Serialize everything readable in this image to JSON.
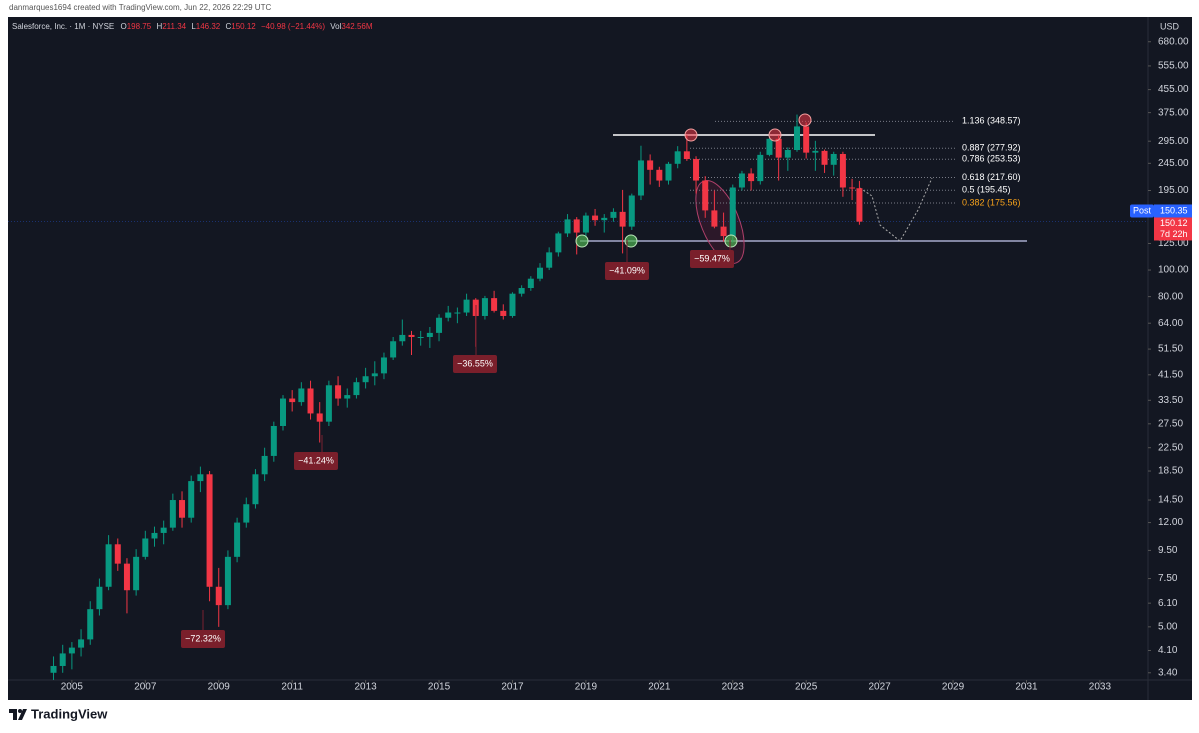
{
  "header": "danmarques1694 created with TradingView.com, Jun 22, 2026 22:29 UTC",
  "brand": "TradingView",
  "chart_data": {
    "type": "candlestick",
    "legend": {
      "symbol": "Salesforce, Inc. · 1M · NYSE",
      "o": "O",
      "h": "H",
      "l": "L",
      "c": "C",
      "change": "−40.98 (−21.44%)",
      "vol_label": "Vol",
      "vol": "342.56M"
    },
    "currency": "USD",
    "post_label": "Post",
    "post_price": {
      "value": 150.35,
      "label": "150.35"
    },
    "countdown": "7d 22h",
    "up_color": "#089981",
    "down_color": "#f23645",
    "log_scale": true,
    "grid": false,
    "x": [
      2004.5,
      2004.75,
      2005,
      2005.25,
      2005.5,
      2005.75,
      2006,
      2006.25,
      2006.5,
      2006.75,
      2007,
      2007.25,
      2007.5,
      2007.75,
      2008,
      2008.25,
      2008.5,
      2008.75,
      2009,
      2009.25,
      2009.5,
      2009.75,
      2010,
      2010.25,
      2010.5,
      2010.75,
      2011,
      2011.25,
      2011.5,
      2011.75,
      2012,
      2012.25,
      2012.5,
      2012.75,
      2013,
      2013.25,
      2013.5,
      2013.75,
      2014,
      2014.25,
      2014.5,
      2014.75,
      2015,
      2015.25,
      2015.5,
      2015.75,
      2016,
      2016.25,
      2016.5,
      2016.75,
      2017,
      2017.25,
      2017.5,
      2017.75,
      2018,
      2018.25,
      2018.5,
      2018.75,
      2019,
      2019.25,
      2019.5,
      2019.75,
      2020,
      2020.25,
      2020.5,
      2020.75,
      2021,
      2021.25,
      2021.5,
      2021.75,
      2022,
      2022.25,
      2022.5,
      2022.75,
      2023,
      2023.25,
      2023.5,
      2023.75,
      2024,
      2024.25,
      2024.5,
      2024.75,
      2025,
      2025.25,
      2025.5,
      2025.75,
      2026,
      2026.25,
      2026.45
    ],
    "values": [
      [
        3.4,
        3.9,
        3.2,
        3.6
      ],
      [
        3.6,
        4.3,
        3.4,
        4.0
      ],
      [
        4.0,
        4.4,
        3.5,
        4.2
      ],
      [
        4.2,
        4.9,
        3.9,
        4.5
      ],
      [
        4.5,
        6.2,
        4.3,
        5.8
      ],
      [
        5.8,
        7.5,
        5.5,
        7.0
      ],
      [
        7.0,
        10.8,
        6.8,
        10.0
      ],
      [
        10.0,
        10.5,
        8.0,
        8.5
      ],
      [
        8.5,
        8.9,
        5.6,
        6.8
      ],
      [
        6.8,
        9.6,
        6.5,
        9.0
      ],
      [
        9.0,
        11.2,
        8.8,
        10.5
      ],
      [
        10.5,
        11.6,
        9.8,
        11.0
      ],
      [
        11.0,
        12.2,
        10.0,
        11.5
      ],
      [
        11.5,
        15.3,
        11.2,
        14.5
      ],
      [
        14.5,
        15.6,
        11.5,
        12.5
      ],
      [
        12.5,
        17.8,
        12.0,
        17.0
      ],
      [
        17.0,
        19.2,
        15.5,
        18.0
      ],
      [
        18.0,
        18.5,
        6.2,
        7.0
      ],
      [
        7.0,
        8.2,
        5.0,
        6.0
      ],
      [
        6.0,
        9.5,
        5.8,
        9.0
      ],
      [
        9.0,
        12.5,
        8.6,
        12.0
      ],
      [
        12.0,
        14.8,
        11.5,
        14.0
      ],
      [
        14.0,
        18.8,
        13.5,
        18.0
      ],
      [
        18.0,
        22.5,
        17.0,
        21.0
      ],
      [
        21.0,
        28.0,
        20.0,
        27.0
      ],
      [
        27.0,
        35.0,
        26.0,
        34.0
      ],
      [
        34.0,
        36.5,
        30.5,
        33.0
      ],
      [
        33.0,
        39.0,
        32.0,
        37.0
      ],
      [
        37.0,
        39.5,
        28.5,
        30.0
      ],
      [
        30.0,
        33.0,
        23.5,
        28.0
      ],
      [
        28.0,
        39.5,
        27.0,
        38.0
      ],
      [
        38.0,
        41.0,
        32.0,
        34.0
      ],
      [
        34.0,
        37.0,
        31.5,
        35.0
      ],
      [
        35.0,
        40.5,
        34.0,
        39.0
      ],
      [
        39.0,
        44.0,
        37.0,
        41.0
      ],
      [
        41.0,
        46.5,
        38.0,
        42.0
      ],
      [
        42.0,
        50.0,
        40.0,
        48.0
      ],
      [
        48.0,
        57.0,
        47.0,
        55.0
      ],
      [
        55.0,
        66.0,
        53.0,
        58.0
      ],
      [
        58.0,
        60.0,
        49.0,
        57.0
      ],
      [
        57.0,
        60.0,
        53.0,
        57.0
      ],
      [
        57.0,
        62.0,
        52.0,
        59.0
      ],
      [
        59.0,
        69.0,
        55.0,
        67.0
      ],
      [
        67.0,
        74.0,
        65.0,
        70.0
      ],
      [
        70.0,
        73.0,
        64.0,
        70.0
      ],
      [
        70.0,
        82.0,
        68.0,
        78.0
      ],
      [
        78.0,
        79.0,
        52.5,
        68.0
      ],
      [
        68.0,
        80.5,
        66.0,
        79.0
      ],
      [
        79.0,
        84.0,
        70.0,
        71.0
      ],
      [
        71.0,
        75.0,
        66.0,
        68.0
      ],
      [
        68.0,
        83.0,
        67.0,
        82.0
      ],
      [
        82.0,
        88.0,
        80.0,
        86.0
      ],
      [
        86.0,
        95.0,
        84.0,
        93.0
      ],
      [
        93.0,
        106.0,
        91.0,
        102.0
      ],
      [
        102.0,
        121.0,
        100.0,
        116.0
      ],
      [
        116.0,
        138.0,
        112.0,
        136.0
      ],
      [
        136.0,
        160.0,
        132.0,
        153.0
      ],
      [
        153.0,
        156.0,
        114.0,
        137.0
      ],
      [
        137.0,
        162.0,
        132.0,
        158.0
      ],
      [
        158.0,
        167.0,
        145.0,
        152.0
      ],
      [
        152.0,
        160.0,
        137.0,
        155.0
      ],
      [
        155.0,
        168.0,
        150.0,
        163.0
      ],
      [
        163.0,
        196.0,
        115.0,
        144.0
      ],
      [
        144.0,
        190.0,
        140.0,
        187.0
      ],
      [
        187.0,
        284.0,
        180.0,
        251.0
      ],
      [
        251.0,
        264.0,
        205.0,
        232.0
      ],
      [
        232.0,
        238.0,
        201.0,
        212.0
      ],
      [
        212.0,
        248.0,
        205.0,
        244.0
      ],
      [
        244.0,
        283.0,
        235.0,
        271.0
      ],
      [
        271.0,
        311.0,
        250.0,
        254.0
      ],
      [
        254.0,
        260.0,
        190.0,
        212.0
      ],
      [
        212.0,
        220.0,
        155.0,
        165.0
      ],
      [
        165.0,
        195.0,
        142.0,
        144.0
      ],
      [
        144.0,
        162.0,
        127.0,
        133.0
      ],
      [
        133.0,
        205.0,
        126.0,
        200.0
      ],
      [
        200.0,
        230.0,
        195.0,
        225.0
      ],
      [
        225.0,
        235.0,
        195.0,
        211.0
      ],
      [
        211.0,
        270.0,
        205.0,
        263.0
      ],
      [
        263.0,
        318.0,
        260.0,
        301.0
      ],
      [
        301.0,
        310.0,
        212.0,
        257.0
      ],
      [
        257.0,
        280.0,
        230.0,
        274.0
      ],
      [
        274.0,
        369.0,
        270.0,
        334.0
      ],
      [
        334.0,
        345.0,
        255.0,
        268.0
      ],
      [
        268.0,
        296.0,
        230.0,
        272.0
      ],
      [
        272.0,
        275.0,
        226.0,
        242.0
      ],
      [
        242.0,
        270.0,
        221.0,
        265.0
      ],
      [
        265.0,
        270.0,
        185.0,
        200.0
      ],
      [
        200.0,
        215.0,
        180.0,
        198.75
      ],
      [
        198.75,
        211.34,
        146.32,
        150.12
      ]
    ],
    "xlim": [
      2003.26,
      2034.31
    ],
    "xticks": [
      2005,
      2007,
      2009,
      2011,
      2013,
      2015,
      2017,
      2019,
      2021,
      2023,
      2025,
      2027,
      2029,
      2031,
      2033
    ],
    "ylim": [
      3.2,
      830
    ],
    "yticks": [
      {
        "value": 680,
        "label": "680.00"
      },
      {
        "value": 555,
        "label": "555.00"
      },
      {
        "value": 455,
        "label": "455.00"
      },
      {
        "value": 375,
        "label": "375.00"
      },
      {
        "value": 295,
        "label": "295.00"
      },
      {
        "value": 245,
        "label": "245.00"
      },
      {
        "value": 195,
        "label": "195.00"
      },
      {
        "value": 125,
        "label": "125.00"
      },
      {
        "value": 100,
        "label": "100.00"
      },
      {
        "value": 80,
        "label": "80.00"
      },
      {
        "value": 64,
        "label": "64.00"
      },
      {
        "value": 51.5,
        "label": "51.50"
      },
      {
        "value": 41.5,
        "label": "41.50"
      },
      {
        "value": 33.5,
        "label": "33.50"
      },
      {
        "value": 27.5,
        "label": "27.50"
      },
      {
        "value": 22.5,
        "label": "22.50"
      },
      {
        "value": 18.5,
        "label": "18.50"
      },
      {
        "value": 14.5,
        "label": "14.50"
      },
      {
        "value": 12,
        "label": "12.00"
      },
      {
        "value": 9.5,
        "label": "9.50"
      },
      {
        "value": 7.5,
        "label": "7.50"
      },
      {
        "value": 6.1,
        "label": "6.10"
      },
      {
        "value": 5,
        "label": "5.00"
      },
      {
        "value": 4.1,
        "label": "4.10"
      },
      {
        "value": 3.4,
        "label": "3.40"
      }
    ],
    "fib_levels": [
      {
        "value": 348.57,
        "label": "1.136 (348.57)",
        "color": "#ffffff"
      },
      {
        "value": 277.92,
        "label": "0.887 (277.92)",
        "color": "#ffffff"
      },
      {
        "value": 253.53,
        "label": "0.786 (253.53)",
        "color": "#ffffff"
      },
      {
        "value": 217.6,
        "label": "0.618 (217.60)",
        "color": "#ffffff"
      },
      {
        "value": 195.45,
        "label": "0.5 (195.45)",
        "color": "#ffffff"
      },
      {
        "value": 175.56,
        "label": "0.382 (175.56)",
        "color": "#f7a21b"
      }
    ],
    "annotations": [
      "−72.32%",
      "−41.24%",
      "−36.55%",
      "−41.09%",
      "−59.47%"
    ]
  }
}
